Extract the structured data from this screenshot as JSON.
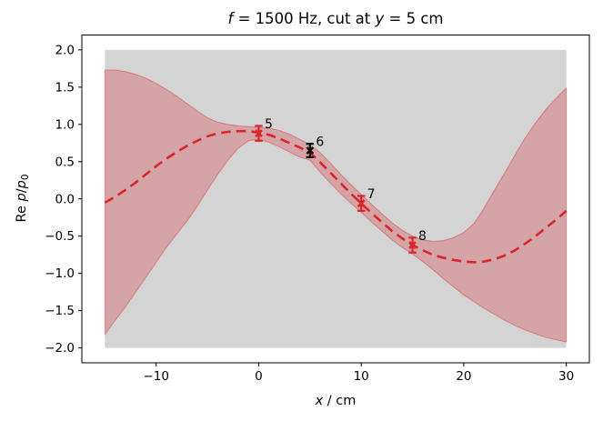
{
  "figure": {
    "background": "#ffffff"
  },
  "chart_data": {
    "type": "line",
    "title": "f = 1500 Hz, cut at y = 5 cm",
    "title_parts": [
      {
        "t": "f",
        "style": "italic"
      },
      {
        "t": " = 1500 Hz, cut at ",
        "style": "normal"
      },
      {
        "t": "y",
        "style": "italic"
      },
      {
        "t": " = 5 cm",
        "style": "normal"
      }
    ],
    "xlabel": "x / cm",
    "xlabel_parts": [
      {
        "t": "x",
        "style": "italic"
      },
      {
        "t": " / cm",
        "style": "normal"
      }
    ],
    "ylabel": "Re p/p0",
    "ylabel_parts": [
      {
        "t": "Re ",
        "style": "normal"
      },
      {
        "t": "p",
        "style": "italic"
      },
      {
        "t": "/",
        "style": "normal"
      },
      {
        "t": "p",
        "style": "italic"
      },
      {
        "t": "0",
        "style": "sub"
      }
    ],
    "xlim": [
      -17.25,
      32.25
    ],
    "ylim": [
      -2.2,
      2.2
    ],
    "x_tick_values": [
      -10,
      0,
      10,
      20,
      30
    ],
    "x_tick_labels": [
      "−10",
      "0",
      "10",
      "20",
      "30"
    ],
    "y_tick_values": [
      2.0,
      1.5,
      1.0,
      0.5,
      0.0,
      -0.5,
      -1.0,
      -1.5,
      -2.0
    ],
    "y_tick_labels": [
      "2.0",
      "1.5",
      "1.0",
      "0.5",
      "0.0",
      "−0.5",
      "−1.0",
      "−1.5",
      "−2.0"
    ],
    "grid": false,
    "legend": null,
    "colors": {
      "mean_line": "#d8262b",
      "band_fill": "#d8262b",
      "band_alpha": 0.27,
      "band_edge_alpha": 0.38,
      "prior_band": "#d4d4d4",
      "axis": "#000000",
      "annotation_text": "#000000",
      "black_observation": "#111111"
    },
    "prior_band": {
      "x_min": -15,
      "x_max": 30,
      "y_min": -2.0,
      "y_max": 2.0
    },
    "posterior": {
      "x": [
        -15,
        -14,
        -13,
        -12,
        -11,
        -10,
        -9,
        -8,
        -7,
        -6,
        -5,
        -4,
        -3,
        -2,
        -1,
        0,
        1,
        2,
        3,
        4,
        5,
        6,
        7,
        8,
        9,
        10,
        11,
        12,
        13,
        14,
        15,
        16,
        17,
        18,
        19,
        20,
        21,
        22,
        23,
        24,
        25,
        26,
        27,
        28,
        29,
        30
      ],
      "mean": [
        -0.05,
        0.03,
        0.12,
        0.22,
        0.33,
        0.44,
        0.54,
        0.63,
        0.71,
        0.78,
        0.84,
        0.88,
        0.9,
        0.91,
        0.91,
        0.89,
        0.86,
        0.81,
        0.75,
        0.69,
        0.62,
        0.49,
        0.35,
        0.21,
        0.07,
        -0.06,
        -0.19,
        -0.31,
        -0.43,
        -0.53,
        -0.62,
        -0.69,
        -0.75,
        -0.79,
        -0.82,
        -0.84,
        -0.85,
        -0.84,
        -0.81,
        -0.76,
        -0.69,
        -0.6,
        -0.5,
        -0.39,
        -0.28,
        -0.16
      ],
      "hi": [
        1.73,
        1.73,
        1.71,
        1.67,
        1.62,
        1.55,
        1.47,
        1.38,
        1.28,
        1.18,
        1.09,
        1.03,
        1.0,
        0.98,
        0.97,
        0.96,
        0.95,
        0.92,
        0.87,
        0.8,
        0.73,
        0.62,
        0.48,
        0.33,
        0.19,
        0.06,
        -0.07,
        -0.2,
        -0.32,
        -0.42,
        -0.5,
        -0.55,
        -0.57,
        -0.56,
        -0.52,
        -0.45,
        -0.33,
        -0.12,
        0.12,
        0.35,
        0.59,
        0.82,
        1.02,
        1.2,
        1.35,
        1.49
      ],
      "lo": [
        -1.82,
        -1.63,
        -1.45,
        -1.25,
        -1.05,
        -0.85,
        -0.65,
        -0.47,
        -0.3,
        -0.1,
        0.12,
        0.33,
        0.52,
        0.68,
        0.78,
        0.8,
        0.76,
        0.7,
        0.63,
        0.56,
        0.52,
        0.36,
        0.21,
        0.07,
        -0.06,
        -0.18,
        -0.31,
        -0.43,
        -0.55,
        -0.65,
        -0.74,
        -0.84,
        -0.95,
        -1.07,
        -1.18,
        -1.29,
        -1.38,
        -1.47,
        -1.55,
        -1.63,
        -1.7,
        -1.76,
        -1.81,
        -1.86,
        -1.89,
        -1.92
      ]
    },
    "observations": [
      {
        "label": "5",
        "x": 0,
        "y": 0.88,
        "yerr": 0.1,
        "color": "#d8262b",
        "marker": "x"
      },
      {
        "label": "6",
        "x": 5,
        "y": 0.65,
        "yerr": 0.09,
        "color": "#111111",
        "marker": "x"
      },
      {
        "label": "7",
        "x": 10,
        "y": -0.06,
        "yerr": 0.1,
        "color": "#d8262b",
        "marker": "x"
      },
      {
        "label": "8",
        "x": 15,
        "y": -0.62,
        "yerr": 0.1,
        "color": "#d8262b",
        "marker": "x"
      }
    ]
  }
}
